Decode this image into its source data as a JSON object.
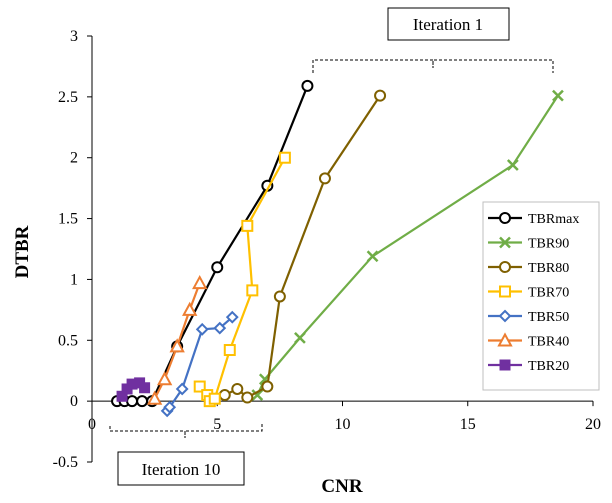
{
  "chart_data": {
    "type": "line",
    "title": "",
    "xlabel": "CNR",
    "ylabel": "DTBR",
    "xlim": [
      0,
      20
    ],
    "ylim": [
      -0.5,
      3
    ],
    "xticks": [
      0,
      5,
      10,
      15,
      20
    ],
    "xtick_labels": [
      "0",
      "5",
      "10",
      "15",
      "20"
    ],
    "yticks": [
      -0.5,
      0,
      0.5,
      1,
      1.5,
      2,
      2.5,
      3
    ],
    "ytick_labels": [
      "-0.5",
      "0",
      "0.5",
      "1",
      "1.5",
      "2",
      "2.5",
      "3"
    ],
    "grid": false,
    "legend_position": "right",
    "series": [
      {
        "name": "TBRmax",
        "color": "#000000",
        "marker": "circle",
        "x": [
          1.0,
          1.3,
          1.6,
          2.0,
          2.4,
          3.4,
          5.0,
          7.0,
          8.6
        ],
        "y": [
          0.0,
          0.0,
          0.0,
          0.0,
          0.0,
          0.45,
          1.1,
          1.77,
          2.59
        ]
      },
      {
        "name": "TBR90",
        "color": "#70AD47",
        "marker": "x",
        "x": [
          6.6,
          6.9,
          8.3,
          11.2,
          16.8,
          18.6
        ],
        "y": [
          0.05,
          0.18,
          0.52,
          1.19,
          1.94,
          2.51
        ]
      },
      {
        "name": "TBR80",
        "color": "#7F6000",
        "marker": "circle",
        "x": [
          5.3,
          5.8,
          6.2,
          7.0,
          7.5,
          9.3,
          11.5
        ],
        "y": [
          0.05,
          0.1,
          0.03,
          0.12,
          0.86,
          1.83,
          2.51
        ]
      },
      {
        "name": "TBR70",
        "color": "#FFC000",
        "marker": "square",
        "x": [
          4.3,
          4.6,
          4.7,
          4.9,
          5.5,
          6.4,
          6.2,
          7.7
        ],
        "y": [
          0.12,
          0.05,
          0.0,
          0.02,
          0.42,
          0.91,
          1.44,
          2.0
        ],
        "note": "visit order follows the plotted line"
      },
      {
        "name": "TBR50",
        "color": "#4472C4",
        "marker": "diamond",
        "x": [
          3.0,
          3.1,
          3.6,
          4.4,
          5.1,
          5.6
        ],
        "y": [
          -0.08,
          -0.05,
          0.1,
          0.59,
          0.6,
          0.69
        ]
      },
      {
        "name": "TBR40",
        "color": "#ED7D31",
        "marker": "triangle",
        "x": [
          2.5,
          2.9,
          3.4,
          3.9,
          4.3
        ],
        "y": [
          0.02,
          0.18,
          0.45,
          0.75,
          0.97
        ]
      },
      {
        "name": "TBR20",
        "color": "#7030A0",
        "marker": "square-filled",
        "x": [
          1.2,
          1.4,
          1.6,
          1.9,
          2.1
        ],
        "y": [
          0.04,
          0.1,
          0.14,
          0.15,
          0.11
        ]
      }
    ],
    "annotations": [
      {
        "text": "Iteration 1"
      },
      {
        "text": "Iteration 10"
      }
    ]
  }
}
